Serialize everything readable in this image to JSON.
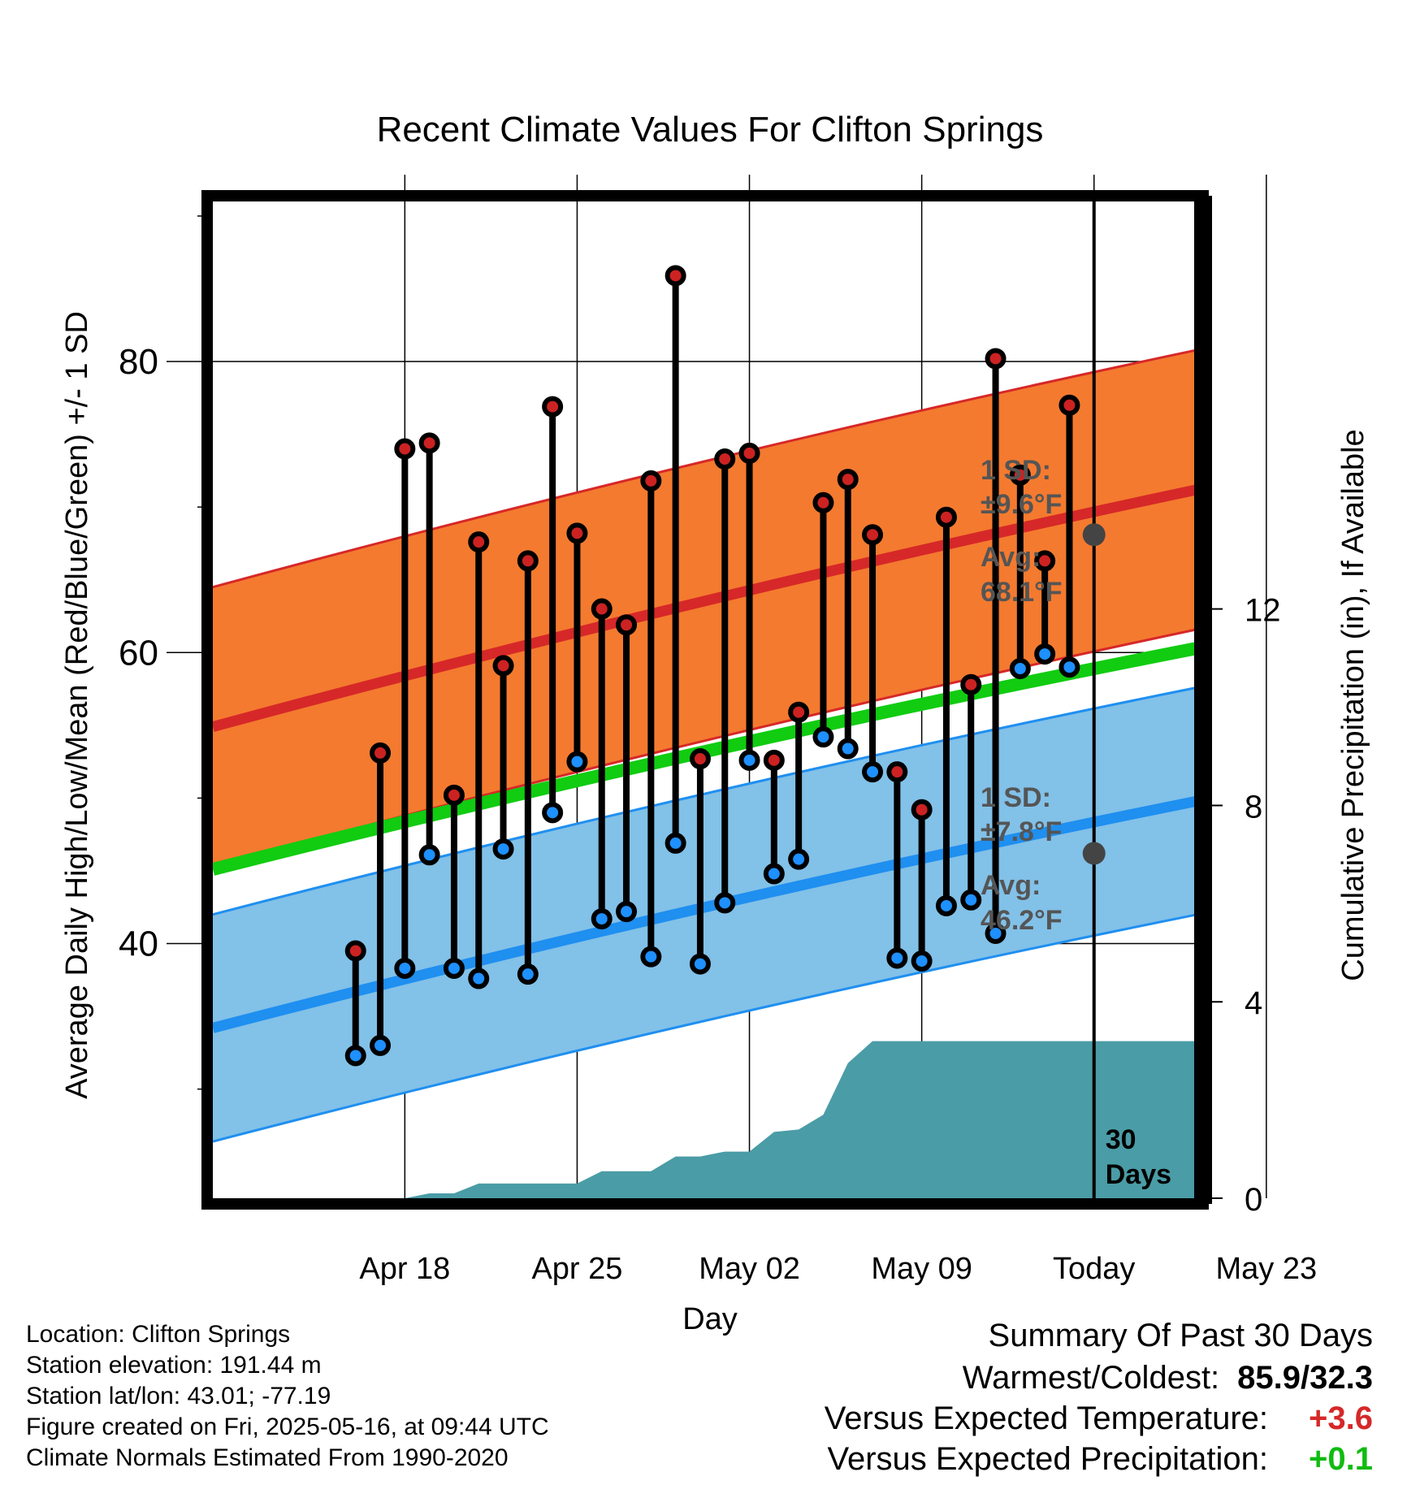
{
  "chart_data": {
    "type": "line",
    "title": "Recent Climate Values For Clifton Springs",
    "xlabel": "Day",
    "ylabel": "Average Daily High/Low/Mean (Red/Blue/Green) +/- 1 SD",
    "y2label": "Cumulative Precipitation (in), If Available",
    "ylim": [
      22.5,
      91
    ],
    "y2lim": [
      0,
      20.3
    ],
    "xlim": [
      -4.8,
      35.2
    ],
    "x_ticks": [
      {
        "x": 3,
        "label": "Apr 18"
      },
      {
        "x": 10,
        "label": "Apr 25"
      },
      {
        "x": 17,
        "label": "May 02"
      },
      {
        "x": 24,
        "label": "May 09"
      },
      {
        "x": 31,
        "label": "Today"
      },
      {
        "x": 38,
        "label": "May 23"
      }
    ],
    "y_ticks": [
      40,
      60,
      80
    ],
    "y_minor_ticks": [
      30,
      50,
      70,
      90
    ],
    "y2_ticks": [
      0,
      4,
      8,
      12
    ],
    "grid": true,
    "today_x": 31,
    "today_label": "30 Days",
    "normals": {
      "x": [
        -4.8,
        35.2
      ],
      "high_mean": [
        54.9,
        71.2
      ],
      "high_sd": 9.6,
      "low_mean": [
        34.2,
        49.8
      ],
      "low_sd": 7.8,
      "avg_mean": [
        45.1,
        60.3
      ],
      "colors": {
        "high_band": "#f47a2f",
        "high_line": "#d62828",
        "low_band": "#82c1e8",
        "low_line": "#1f8ff0",
        "avg_line": "#11cc11"
      }
    },
    "annotations": {
      "high_sd_label": "1 SD:",
      "high_sd_value": "±9.6°F",
      "high_avg_label": "Avg:",
      "high_avg_value": "68.1°F",
      "high_avg_point": 68.1,
      "low_sd_label": "1 SD:",
      "low_sd_value": "±7.8°F",
      "low_avg_label": "Avg:",
      "low_avg_point": 46.2,
      "low_avg_value": "46.2°F"
    },
    "series": [
      {
        "name": "High",
        "color": "#cc2222",
        "x": [
          1,
          2,
          3,
          4,
          5,
          6,
          7,
          8,
          9,
          10,
          11,
          12,
          13,
          14,
          15,
          16,
          17,
          18,
          19,
          20,
          21,
          22,
          23,
          24,
          25,
          26,
          27,
          28,
          29,
          30
        ],
        "values": [
          39.5,
          53.1,
          74.0,
          74.4,
          50.2,
          67.6,
          59.1,
          66.3,
          76.9,
          68.2,
          63.0,
          61.9,
          71.8,
          85.9,
          52.7,
          73.3,
          73.7,
          52.6,
          55.9,
          70.3,
          71.9,
          68.1,
          51.8,
          49.2,
          69.3,
          57.8,
          80.2,
          72.2,
          66.3,
          77.0
        ]
      },
      {
        "name": "Low",
        "color": "#1e90ff",
        "x": [
          1,
          2,
          3,
          4,
          5,
          6,
          7,
          8,
          9,
          10,
          11,
          12,
          13,
          14,
          15,
          16,
          17,
          18,
          19,
          20,
          21,
          22,
          23,
          24,
          25,
          26,
          27,
          28,
          29,
          30
        ],
        "values": [
          32.3,
          33.0,
          38.3,
          46.1,
          38.3,
          37.6,
          46.5,
          37.9,
          49.0,
          52.5,
          41.7,
          42.2,
          39.1,
          46.9,
          38.6,
          42.8,
          52.6,
          44.8,
          45.8,
          54.2,
          53.4,
          51.8,
          39.0,
          38.8,
          42.6,
          43.0,
          40.7,
          58.9,
          59.9,
          59.0
        ]
      }
    ],
    "precipitation": {
      "color": "#4a9ca6",
      "x": [
        -4.8,
        0,
        1,
        2,
        3,
        4,
        5,
        6,
        7,
        8,
        9,
        10,
        11,
        12,
        13,
        14,
        15,
        16,
        17,
        18,
        19,
        20,
        21,
        22,
        23,
        24,
        25,
        26,
        27,
        28,
        29,
        30,
        31,
        32,
        33,
        34,
        35.2
      ],
      "values": [
        0,
        0,
        0,
        0,
        0,
        0.1,
        0.1,
        0.3,
        0.3,
        0.3,
        0.3,
        0.3,
        0.55,
        0.55,
        0.55,
        0.85,
        0.85,
        0.95,
        0.95,
        1.35,
        1.4,
        1.7,
        2.75,
        3.2,
        3.2,
        3.2,
        3.2,
        3.2,
        3.2,
        3.2,
        3.2,
        3.2,
        3.2,
        3.2,
        3.2,
        3.2,
        3.2
      ]
    }
  },
  "info": {
    "location": "Location: Clifton Springs",
    "elevation": "Station elevation: 191.44 m",
    "latlon": "Station lat/lon: 43.01; -77.19",
    "created": "Figure created on Fri, 2025-05-16, at 09:44 UTC",
    "normals_period": "Climate Normals Estimated From 1990-2020"
  },
  "summary": {
    "heading": "Summary Of Past 30 Days",
    "warm_cold_label": "Warmest/Coldest:",
    "warm_cold_value": "85.9/32.3",
    "temp_label": "Versus Expected Temperature:",
    "temp_value": "+3.6",
    "temp_color": "#d62828",
    "precip_label": "Versus Expected Precipitation:",
    "precip_value": "+0.1",
    "precip_color": "#11bb11"
  }
}
